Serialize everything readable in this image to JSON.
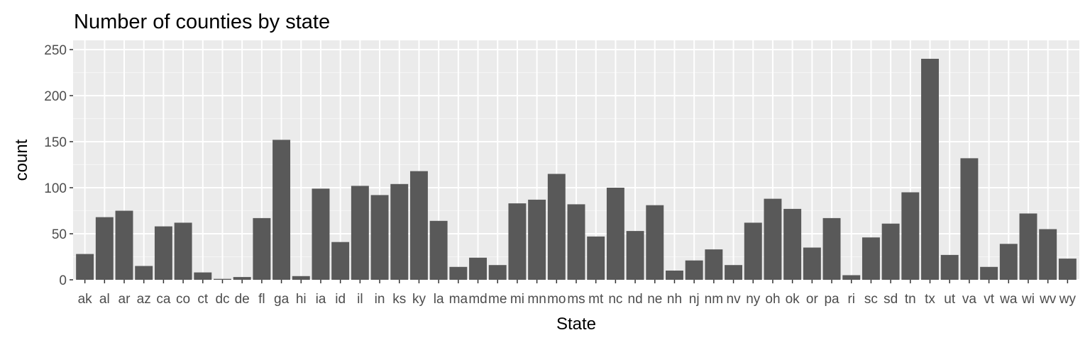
{
  "chart_data": {
    "type": "bar",
    "title": "Number of counties by state",
    "xlabel": "State",
    "ylabel": "count",
    "ylim": [
      0,
      260
    ],
    "yticks": [
      0,
      50,
      100,
      150,
      200,
      250
    ],
    "grid": true,
    "categories": [
      "ak",
      "al",
      "ar",
      "az",
      "ca",
      "co",
      "ct",
      "dc",
      "de",
      "fl",
      "ga",
      "hi",
      "ia",
      "id",
      "il",
      "in",
      "ks",
      "ky",
      "la",
      "ma",
      "md",
      "me",
      "mi",
      "mn",
      "mo",
      "ms",
      "mt",
      "nc",
      "nd",
      "ne",
      "nh",
      "nj",
      "nm",
      "nv",
      "ny",
      "oh",
      "ok",
      "or",
      "pa",
      "ri",
      "sc",
      "sd",
      "tn",
      "tx",
      "ut",
      "va",
      "vt",
      "wa",
      "wi",
      "wv",
      "wy"
    ],
    "values": [
      28,
      68,
      75,
      15,
      58,
      62,
      8,
      1,
      3,
      67,
      152,
      4,
      99,
      41,
      102,
      92,
      104,
      118,
      64,
      14,
      24,
      16,
      83,
      87,
      115,
      82,
      47,
      100,
      53,
      81,
      10,
      21,
      33,
      16,
      62,
      88,
      77,
      35,
      67,
      5,
      46,
      61,
      95,
      240,
      27,
      132,
      14,
      39,
      72,
      55,
      23
    ],
    "colors": {
      "bar": "#595959",
      "panel": "#ebebeb",
      "grid_major": "#ffffff",
      "grid_minor": "#f5f5f5",
      "tick": "#333333"
    }
  }
}
